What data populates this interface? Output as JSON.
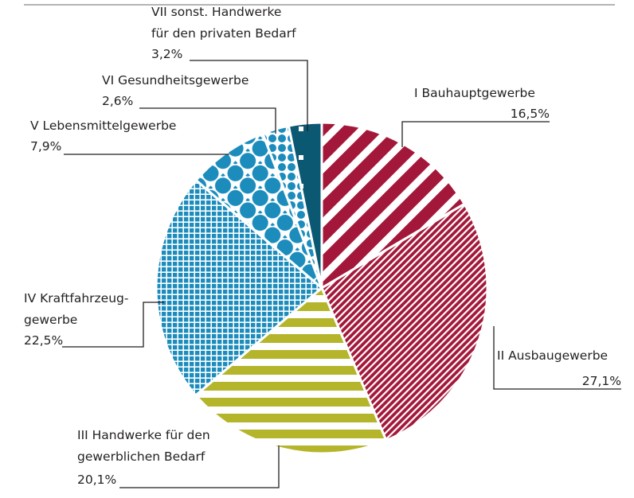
{
  "chart_data": {
    "type": "pie",
    "categories": [
      "I Bauhauptgewerbe",
      "II Ausbaugewerbe",
      "III Handwerke für den\ngewerblichen Bedarf",
      "IV Kraftfahrzeug-\ngewerbe",
      "V Lebensmittelgewerbe",
      "VI Gesundheitsgewerbe",
      "VII sonst. Handwerke\nfür den privaten Bedarf"
    ],
    "values": [
      16.5,
      27.1,
      20.1,
      22.5,
      7.9,
      2.6,
      3.2
    ],
    "value_labels": [
      "16,5%",
      "27,1%",
      "20,1%",
      "22,5%",
      "7,9%",
      "2,6%",
      "3,2%"
    ],
    "colors": [
      "#a3183a",
      "#a3183a",
      "#b4b52a",
      "#1b8cbc",
      "#1b8cbc",
      "#1b8cbc",
      "#0b5873"
    ],
    "patterns": [
      "wide-stripes",
      "fine-stripes",
      "horizontal-stripes",
      "grid",
      "large-dots",
      "small-dots",
      "squares"
    ]
  }
}
